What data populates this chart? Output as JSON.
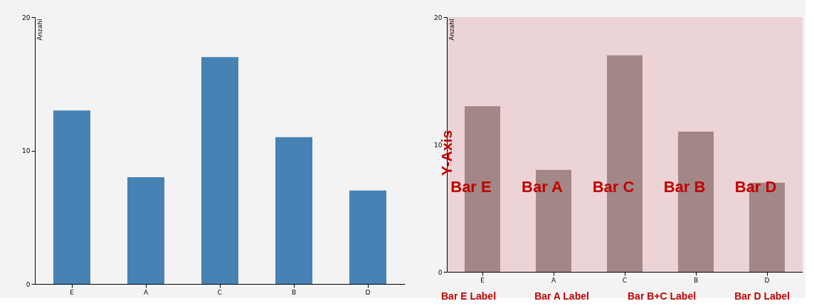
{
  "chart_data": [
    {
      "type": "bar",
      "ylabel": "Anzahl",
      "categories": [
        "E",
        "A",
        "C",
        "B",
        "D"
      ],
      "values": [
        13,
        8,
        17,
        11,
        7
      ],
      "color": "#4682b4",
      "ylim": [
        0,
        20
      ],
      "yticks": [
        0,
        10,
        20
      ],
      "grid": false
    },
    {
      "type": "bar",
      "ylabel": "Anzahl",
      "categories": [
        "E",
        "A",
        "C",
        "B",
        "D"
      ],
      "values": [
        13,
        8,
        17,
        11,
        7
      ],
      "color": "#a38787",
      "ylim": [
        0,
        20
      ],
      "yticks": [
        0,
        10,
        20
      ],
      "grid": false,
      "annotations": [
        "Y-Axis",
        "Bar E",
        "Bar A",
        "Bar C",
        "Bar B",
        "Bar D",
        "Bar E Label",
        "Bar A Label",
        "Bar B+C Label",
        "Bar D Label"
      ]
    }
  ]
}
